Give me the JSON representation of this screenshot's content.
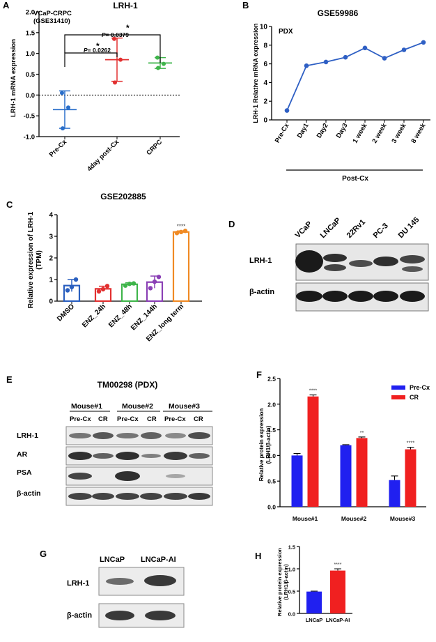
{
  "panels": {
    "A": {
      "label": "A",
      "title": "LRH-1",
      "dataset_line1": "VCaP-CRPC",
      "dataset_line2": "(GSE31410)",
      "ylabel": "LRH-1 mRNA expression",
      "categories": [
        "Pre-Cx",
        "4day post-Cx",
        "CRPC"
      ],
      "yticks": [
        "-1.0",
        "-0.5",
        "0.0",
        "0.5",
        "1.0",
        "1.5",
        "2.0"
      ],
      "sig1": "*",
      "sig2": "*",
      "p1_prefix": "P",
      "p1_value": "= 0.0262",
      "p2_prefix": "P",
      "p2_value": "= 0.0379",
      "colors": [
        "#2a6fca",
        "#e23030",
        "#3fb54b"
      ]
    },
    "B": {
      "label": "B",
      "title": "GSE59986",
      "inset": "PDX",
      "ylabel": "LRH-1 Relative mRNA expression",
      "categories": [
        "Pre-Cx",
        "Day1",
        "Day2",
        "Day3",
        "1 week",
        "2 week",
        "3 week",
        "8 week"
      ],
      "yticks": [
        "0",
        "2",
        "4",
        "6",
        "8",
        "10"
      ],
      "group_label": "Post-Cx",
      "color": "#2e5fc4"
    },
    "C": {
      "label": "C",
      "title": "GSE202885",
      "ylabel_line1": "Relative expression of LRH-1",
      "ylabel_line2": "(TPM)",
      "categories": [
        "DMSO",
        "ENZ_24h",
        "ENZ_48h",
        "ENZ_144h",
        "ENZ_long term"
      ],
      "yticks": [
        "0",
        "1",
        "2",
        "3",
        "4"
      ],
      "sig": "****",
      "colors": [
        "#2a5fbf",
        "#e23030",
        "#3fb54b",
        "#8a3fb5",
        "#f08a24"
      ]
    },
    "D": {
      "label": "D",
      "lanes": [
        "VCaP",
        "LNCaP",
        "22Rv1",
        "PC-3",
        "DU 145"
      ],
      "rows": [
        "LRH-1",
        "β-actin"
      ]
    },
    "E": {
      "label": "E",
      "title": "TM00298 (PDX)",
      "mice": [
        "Mouse#1",
        "Mouse#2",
        "Mouse#3"
      ],
      "conditions": [
        "Pre-Cx",
        "CR"
      ],
      "rows": [
        "LRH-1",
        "AR",
        "PSA",
        "β-actin"
      ]
    },
    "F": {
      "label": "F",
      "ylabel_line1": "Relative protein expression",
      "ylabel_line2": "(LRH1/β-actin)",
      "categories": [
        "Mouse#1",
        "Mouse#2",
        "Mouse#3"
      ],
      "yticks": [
        "0.0",
        "0.5",
        "1.0",
        "1.5",
        "2.0",
        "2.5"
      ],
      "legend": [
        "Pre-Cx",
        "CR"
      ],
      "sig": [
        "****",
        "**",
        "****"
      ],
      "colors": [
        "#2020f0",
        "#f02020"
      ]
    },
    "G": {
      "label": "G",
      "lanes": [
        "LNCaP",
        "LNCaP-AI"
      ],
      "rows": [
        "LRH-1",
        "β-actin"
      ]
    },
    "H": {
      "label": "H",
      "ylabel_line1": "Relative protein expression",
      "ylabel_line2": "(LRH1/β-actin)",
      "categories": [
        "LNCaP",
        "LNCaP-AI"
      ],
      "yticks": [
        "0.0",
        "0.5",
        "1.0",
        "1.5"
      ],
      "sig": "****",
      "colors": [
        "#2020f0",
        "#f02020"
      ]
    }
  },
  "chart_data": [
    {
      "panel": "A",
      "type": "scatter",
      "title": "LRH-1",
      "ylabel": "LRH-1 mRNA expression",
      "ylim": [
        -1.0,
        2.0
      ],
      "categories": [
        "Pre-Cx",
        "4day post-Cx",
        "CRPC"
      ],
      "points": [
        [
          -0.8,
          -0.3,
          0.05
        ],
        [
          0.3,
          0.85,
          1.35
        ],
        [
          0.65,
          0.75,
          0.9
        ]
      ],
      "mean": [
        -0.35,
        0.85,
        0.77
      ],
      "sd": [
        0.45,
        0.52,
        0.13
      ]
    },
    {
      "panel": "B",
      "type": "line",
      "title": "GSE59986",
      "ylabel": "LRH-1 Relative mRNA expression",
      "ylim": [
        0,
        10
      ],
      "categories": [
        "Pre-Cx",
        "Day1",
        "Day2",
        "Day3",
        "1 week",
        "2 week",
        "3 week",
        "8 week"
      ],
      "values": [
        1.0,
        5.8,
        6.2,
        6.7,
        7.7,
        6.6,
        7.5,
        8.3
      ]
    },
    {
      "panel": "C",
      "type": "bar",
      "title": "GSE202885",
      "ylabel": "Relative expression of LRH-1 (TPM)",
      "ylim": [
        0,
        4
      ],
      "categories": [
        "DMSO",
        "ENZ_24h",
        "ENZ_48h",
        "ENZ_144h",
        "ENZ_long term"
      ],
      "values": [
        0.72,
        0.57,
        0.78,
        0.88,
        3.2
      ],
      "sd": [
        0.28,
        0.12,
        0.07,
        0.28,
        0.05
      ],
      "points": [
        [
          0.5,
          0.65,
          1.0
        ],
        [
          0.45,
          0.55,
          0.7
        ],
        [
          0.72,
          0.8,
          0.82
        ],
        [
          0.6,
          0.9,
          1.12
        ],
        [
          3.15,
          3.2,
          3.25
        ]
      ]
    },
    {
      "panel": "F",
      "type": "bar",
      "ylabel": "Relative protein expression (LRH1/β-actin)",
      "ylim": [
        0,
        2.5
      ],
      "categories": [
        "Mouse#1",
        "Mouse#2",
        "Mouse#3"
      ],
      "series": [
        {
          "name": "Pre-Cx",
          "values": [
            1.0,
            1.2,
            0.52
          ],
          "sd": [
            0.04,
            0.01,
            0.08
          ]
        },
        {
          "name": "CR",
          "values": [
            2.15,
            1.34,
            1.12
          ],
          "sd": [
            0.03,
            0.02,
            0.04
          ]
        }
      ]
    },
    {
      "panel": "H",
      "type": "bar",
      "ylabel": "Relative protein expression (LRH1/β-actin)",
      "ylim": [
        0,
        1.5
      ],
      "categories": [
        "LNCaP",
        "LNCaP-AI"
      ],
      "values": [
        0.49,
        0.96
      ],
      "sd": [
        0.01,
        0.04
      ]
    }
  ]
}
